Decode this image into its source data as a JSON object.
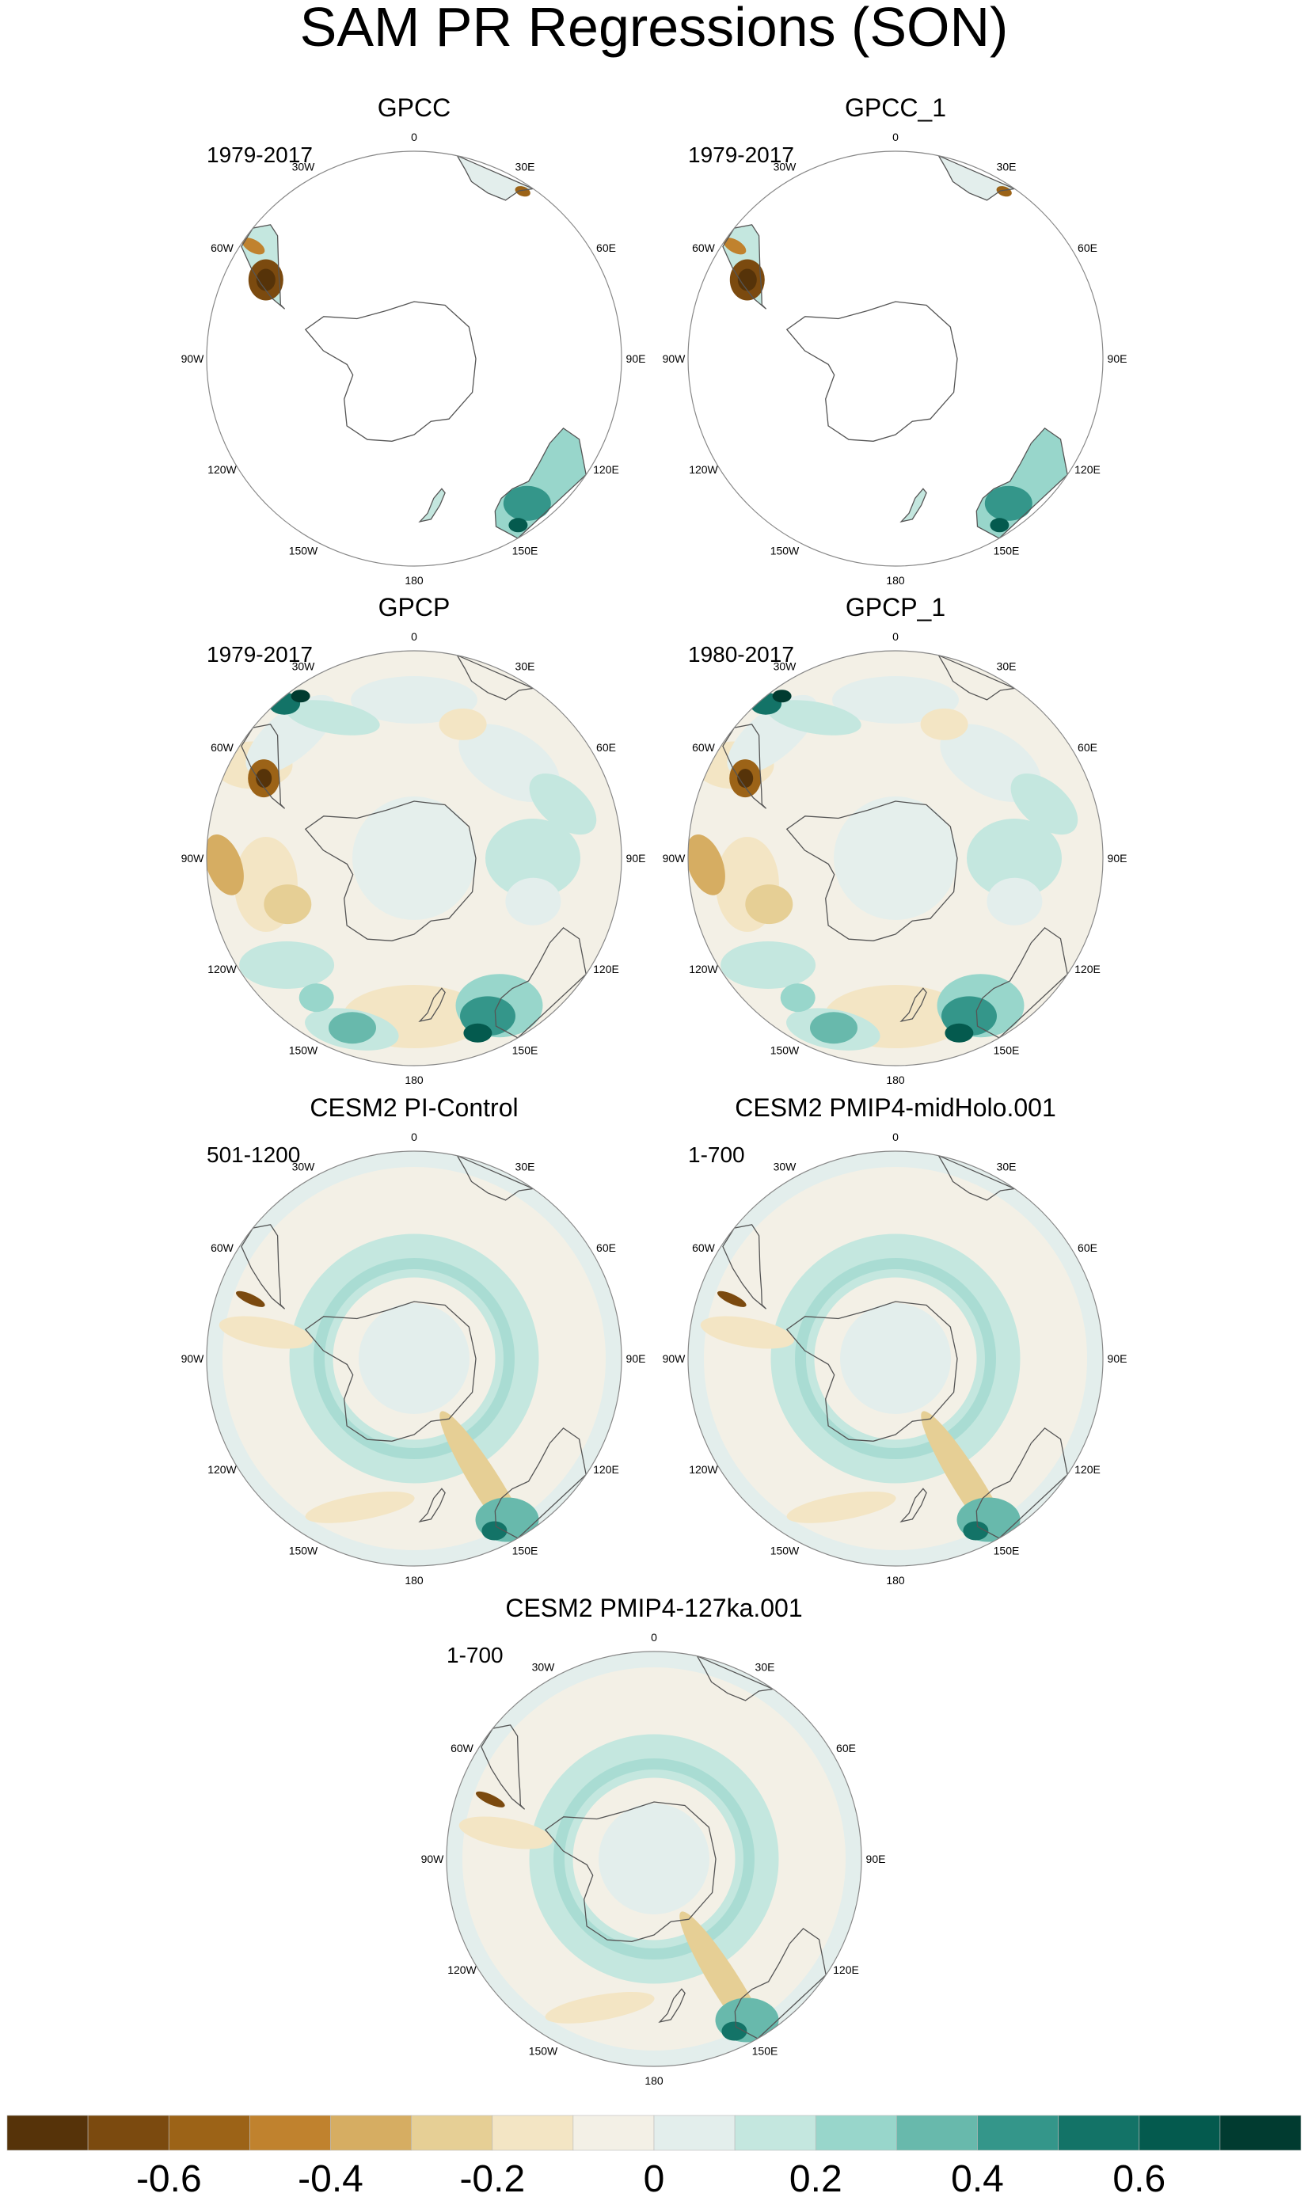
{
  "title": "SAM PR Regressions (SON)",
  "panels": [
    {
      "id": "gpcc",
      "title": "GPCC",
      "period": "1979-2017",
      "field": "land"
    },
    {
      "id": "gpcc_1",
      "title": "GPCC_1",
      "period": "1979-2017",
      "field": "land"
    },
    {
      "id": "gpcp",
      "title": "GPCP",
      "period": "1979-2017",
      "field": "global"
    },
    {
      "id": "gpcp_1",
      "title": "GPCP_1",
      "period": "1980-2017",
      "field": "global"
    },
    {
      "id": "pi",
      "title": "CESM2 PI-Control",
      "period": "501-1200",
      "field": "model"
    },
    {
      "id": "midholo",
      "title": "CESM2 PMIP4-midHolo.001",
      "period": "1-700",
      "field": "model"
    },
    {
      "id": "ka127",
      "title": "CESM2 PMIP4-127ka.001",
      "period": "1-700",
      "field": "model"
    }
  ],
  "lon_labels": [
    "0",
    "30E",
    "60E",
    "90E",
    "120E",
    "150E",
    "180",
    "150W",
    "120W",
    "90W",
    "60W",
    "30W"
  ],
  "chart_data": {
    "type": "heatmap",
    "map_projection": "south-polar-stereographic",
    "colorbar": {
      "levels": [
        -0.7,
        -0.6,
        -0.5,
        -0.4,
        -0.3,
        -0.2,
        -0.1,
        0,
        0.1,
        0.2,
        0.3,
        0.4,
        0.5,
        0.6,
        0.7
      ],
      "colors": [
        "#563309",
        "#7b4a0f",
        "#9c6317",
        "#c0822e",
        "#d6ad62",
        "#e6cf95",
        "#f3e5c4",
        "#f3f0e6",
        "#e3eeec",
        "#c4e7df",
        "#98d6cb",
        "#68b9ac",
        "#34968a",
        "#137367",
        "#045a4e",
        "#013b30"
      ],
      "tick_labels": [
        "-0.6",
        "-0.4",
        "-0.2",
        "0",
        "0.2",
        "0.4",
        "0.6"
      ],
      "tick_values": [
        -0.6,
        -0.4,
        -0.2,
        0,
        0.2,
        0.4,
        0.6
      ]
    }
  }
}
